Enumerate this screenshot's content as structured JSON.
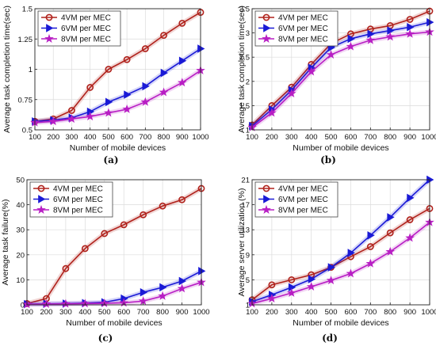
{
  "chart_data": [
    {
      "type": "line",
      "panel_label": "(a)",
      "xlabel": "Number of mobile devices",
      "ylabel": "Average task completion time(sec)",
      "x": [
        100,
        200,
        300,
        400,
        500,
        600,
        700,
        800,
        900,
        1000
      ],
      "xticks": [
        "100",
        "200",
        "300",
        "400",
        "500",
        "600",
        "700",
        "800",
        "900",
        "1000"
      ],
      "xlim": [
        100,
        1000
      ],
      "ylim": [
        0.5,
        1.5
      ],
      "yticks": [
        0.5,
        0.75,
        1,
        1.25,
        1.5
      ],
      "ytick_labels": [
        "0.5",
        "0.75",
        "1",
        "1.25",
        "1.5"
      ],
      "grid": true,
      "legend": "top-left",
      "series": [
        {
          "name": "4VM per MEC",
          "color": "#b0221c",
          "marker": "circle",
          "values": [
            0.57,
            0.59,
            0.66,
            0.85,
            1.0,
            1.08,
            1.17,
            1.28,
            1.38,
            1.47
          ]
        },
        {
          "name": "6VM per MEC",
          "color": "#1a1ad6",
          "marker": "triangle-right",
          "values": [
            0.57,
            0.58,
            0.6,
            0.65,
            0.73,
            0.79,
            0.86,
            0.97,
            1.07,
            1.17
          ]
        },
        {
          "name": "8VM per MEC",
          "color": "#b81ec4",
          "marker": "star",
          "values": [
            0.56,
            0.57,
            0.59,
            0.61,
            0.64,
            0.67,
            0.73,
            0.81,
            0.89,
            0.99
          ]
        }
      ]
    },
    {
      "type": "line",
      "panel_label": "(b)",
      "xlabel": "Number of mobile devices",
      "ylabel": "Average task completion time(sec)",
      "x": [
        100,
        200,
        300,
        400,
        500,
        600,
        700,
        800,
        900,
        1000
      ],
      "xticks": [
        "100",
        "200",
        "300",
        "400",
        "500",
        "600",
        "700",
        "800",
        "900",
        "1000"
      ],
      "xlim": [
        100,
        1000
      ],
      "ylim": [
        1,
        3.5
      ],
      "yticks": [
        1,
        1.5,
        2,
        2.5,
        3,
        3.5
      ],
      "ytick_labels": [
        "1",
        "1.5",
        "2",
        "2.5",
        "3",
        "3.5"
      ],
      "grid": true,
      "legend": "top-left",
      "series": [
        {
          "name": "4VM per MEC",
          "color": "#b0221c",
          "marker": "circle",
          "values": [
            1.1,
            1.5,
            1.88,
            2.35,
            2.78,
            2.98,
            3.08,
            3.15,
            3.28,
            3.45
          ]
        },
        {
          "name": "6VM per MEC",
          "color": "#1a1ad6",
          "marker": "triangle-right",
          "values": [
            1.08,
            1.42,
            1.82,
            2.28,
            2.7,
            2.88,
            2.98,
            3.05,
            3.12,
            3.22
          ]
        },
        {
          "name": "8VM per MEC",
          "color": "#b81ec4",
          "marker": "star",
          "values": [
            1.05,
            1.35,
            1.75,
            2.2,
            2.55,
            2.72,
            2.85,
            2.92,
            2.98,
            3.02
          ]
        }
      ]
    },
    {
      "type": "line",
      "panel_label": "(c)",
      "xlabel": "Number of mobile devices",
      "ylabel": "Average task failure(%)",
      "x": [
        100,
        200,
        300,
        400,
        500,
        600,
        700,
        800,
        900,
        1000
      ],
      "xticks": [
        "100",
        "200",
        "300",
        "400",
        "500",
        "600",
        "700",
        "800",
        "900",
        "1000"
      ],
      "xlim": [
        100,
        1000
      ],
      "ylim": [
        0,
        50
      ],
      "yticks": [
        0,
        10,
        20,
        30,
        40,
        50
      ],
      "ytick_labels": [
        "0",
        "10",
        "20",
        "30",
        "40",
        "50"
      ],
      "grid": true,
      "legend": "top-left",
      "series": [
        {
          "name": "4VM per MEC",
          "color": "#b0221c",
          "marker": "circle",
          "values": [
            0.5,
            2.5,
            14.5,
            22.5,
            28.5,
            32,
            36,
            39.5,
            42,
            46.5
          ]
        },
        {
          "name": "6VM per MEC",
          "color": "#1a1ad6",
          "marker": "triangle-right",
          "values": [
            0.3,
            0.4,
            0.5,
            0.7,
            1.0,
            2.5,
            5.0,
            7.0,
            9.5,
            13.5
          ]
        },
        {
          "name": "8VM per MEC",
          "color": "#b81ec4",
          "marker": "star",
          "values": [
            0.2,
            0.3,
            0.4,
            0.5,
            0.6,
            0.8,
            1.5,
            3.5,
            6.5,
            9.0
          ]
        }
      ]
    },
    {
      "type": "line",
      "panel_label": "(d)",
      "xlabel": "Number of mobile devices",
      "ylabel": "Average server utilization (%)",
      "x": [
        100,
        200,
        300,
        400,
        500,
        600,
        700,
        800,
        900,
        1000
      ],
      "xticks": [
        "100",
        "200",
        "300",
        "400",
        "500",
        "600",
        "700",
        "800",
        "900",
        "1000"
      ],
      "xlim": [
        100,
        1000
      ],
      "ylim": [
        1,
        21
      ],
      "yticks": [
        1,
        5,
        9,
        13,
        17,
        21
      ],
      "ytick_labels": [
        "1",
        "5",
        "9",
        "13",
        "17",
        "21"
      ],
      "grid": true,
      "legend": "top-left",
      "series": [
        {
          "name": "4VM per MEC",
          "color": "#b0221c",
          "marker": "circle",
          "values": [
            1.8,
            4.2,
            5.0,
            5.8,
            7.0,
            8.7,
            10.3,
            12.5,
            14.6,
            16.4
          ]
        },
        {
          "name": "6VM per MEC",
          "color": "#1a1ad6",
          "marker": "triangle-right",
          "values": [
            1.5,
            2.6,
            3.8,
            5.1,
            7.0,
            9.3,
            12.1,
            15.0,
            18.1,
            21.0
          ]
        },
        {
          "name": "8VM per MEC",
          "color": "#b81ec4",
          "marker": "star",
          "values": [
            1.2,
            2.0,
            2.9,
            3.9,
            4.9,
            6.0,
            7.6,
            9.5,
            11.7,
            14.2
          ]
        }
      ]
    }
  ]
}
